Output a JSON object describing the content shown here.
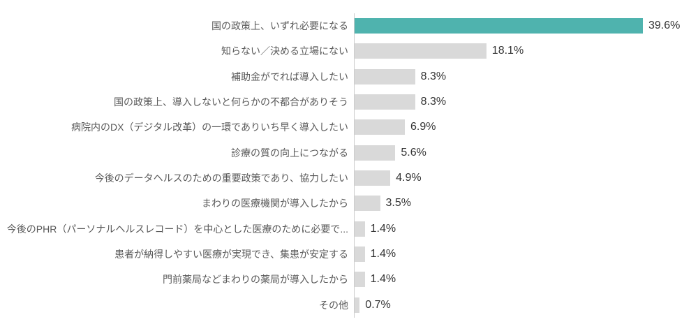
{
  "chart_data": {
    "type": "bar",
    "orientation": "horizontal",
    "title": "",
    "xlabel": "",
    "ylabel": "",
    "grid": false,
    "legend": false,
    "axis_max_percent": 40,
    "highlight_index": 0,
    "categories": [
      "国の政策上、いずれ必要になる",
      "知らない／決める立場にない",
      "補助金がでれば導入したい",
      "国の政策上、導入しないと何らかの不都合がありそう",
      "病院内のDX（デジタル改革）の一環でありいち早く導入したい",
      "診療の質の向上につながる",
      "今後のデータヘルスのための重要政策であり、協力したい",
      "まわりの医療機関が導入したから",
      "今後のPHR（パーソナルヘルスレコード）を中心とした医療のために必要で...",
      "患者が納得しやすい医療が実現でき、集患が安定する",
      "門前薬局などまわりの薬局が導入したから",
      "その他"
    ],
    "values": [
      39.6,
      18.1,
      8.3,
      8.3,
      6.9,
      5.6,
      4.9,
      3.5,
      1.4,
      1.4,
      1.4,
      0.7
    ],
    "value_labels": [
      "39.6%",
      "18.1%",
      "8.3%",
      "8.3%",
      "6.9%",
      "5.6%",
      "4.9%",
      "3.5%",
      "1.4%",
      "1.4%",
      "1.4%",
      "0.7%"
    ],
    "colors": {
      "highlight_bar": "#4fb3ae",
      "default_bar": "#d9d9d9",
      "label_text": "#595959",
      "value_text": "#333333",
      "axis_line": "#cccccc"
    }
  }
}
